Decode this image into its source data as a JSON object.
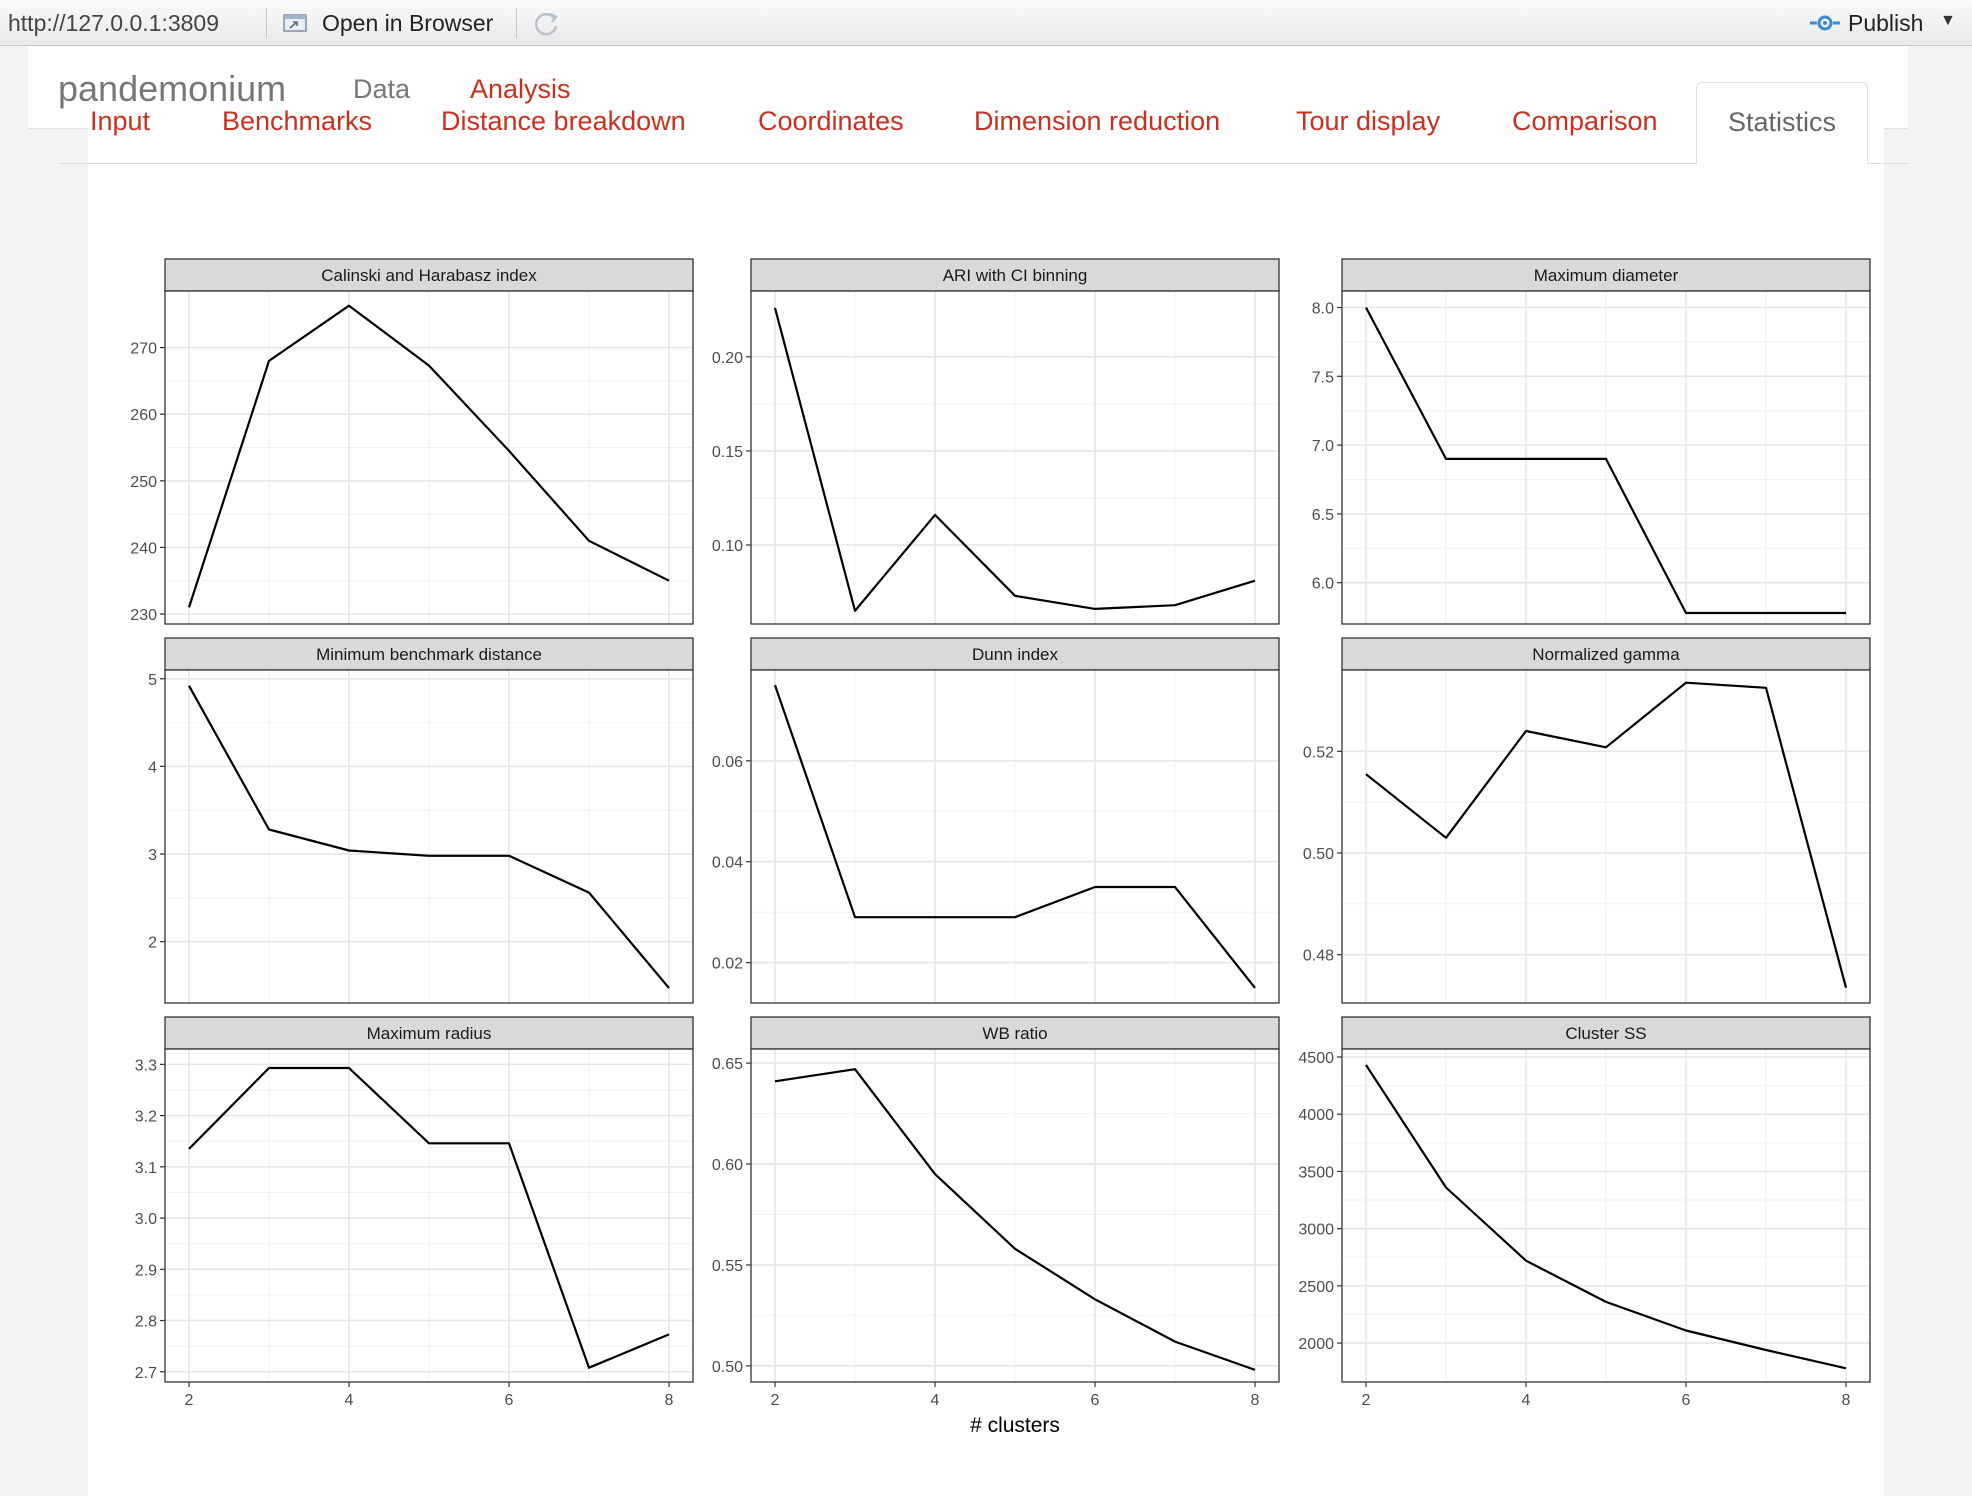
{
  "toolbar": {
    "url": "http://127.0.0.1:3809",
    "open_in_browser": "Open in Browser",
    "publish": "Publish",
    "icons": [
      "open-browser-icon",
      "refresh-icon",
      "publish-icon",
      "caret-down-icon"
    ]
  },
  "navbar": {
    "brand": "pandemonium",
    "items": [
      {
        "label": "Data"
      },
      {
        "label": "Analysis"
      }
    ]
  },
  "tabs": [
    "Input",
    "Benchmarks",
    "Distance breakdown",
    "Coordinates",
    "Dimension reduction",
    "Tour display",
    "Comparison",
    "Statistics"
  ],
  "active_tab": "Statistics",
  "colors": {
    "accent": "#c9301e",
    "strip_bg": "#d9d9d9",
    "line": "#000000",
    "grid": "#ebebeb"
  },
  "chart_data": {
    "type": "line",
    "xlabel": "# clusters",
    "x": [
      2,
      3,
      4,
      5,
      6,
      7,
      8
    ],
    "xticks": [
      "2",
      "4",
      "6",
      "8"
    ],
    "xlim": [
      1.7,
      8.3
    ],
    "panels": [
      {
        "title": "Calinski and Harabasz index",
        "ylim": [
          228.5,
          278.5
        ],
        "yticks": [
          "230",
          "240",
          "250",
          "260",
          "270"
        ],
        "tick_values": [
          230,
          240,
          250,
          260,
          270
        ],
        "values": [
          231,
          268,
          276.3,
          267.3,
          254.5,
          241,
          235
        ]
      },
      {
        "title": "ARI with CI binning",
        "ylim": [
          0.058,
          0.235
        ],
        "yticks": [
          "0.10",
          "0.15",
          "0.20"
        ],
        "tick_values": [
          0.1,
          0.15,
          0.2
        ],
        "values": [
          0.226,
          0.065,
          0.116,
          0.073,
          0.066,
          0.068,
          0.081
        ]
      },
      {
        "title": "Maximum diameter",
        "ylim": [
          5.7,
          8.12
        ],
        "yticks": [
          "6.0",
          "6.5",
          "7.0",
          "7.5",
          "8.0"
        ],
        "tick_values": [
          6.0,
          6.5,
          7.0,
          7.5,
          8.0
        ],
        "values": [
          8.0,
          6.9,
          6.9,
          6.9,
          5.78,
          5.78,
          5.78
        ]
      },
      {
        "title": "Minimum benchmark distance",
        "ylim": [
          1.3,
          5.1
        ],
        "yticks": [
          "2",
          "3",
          "4",
          "5"
        ],
        "tick_values": [
          2,
          3,
          4,
          5
        ],
        "values": [
          4.92,
          3.28,
          3.04,
          2.98,
          2.98,
          2.56,
          1.47
        ]
      },
      {
        "title": "Dunn index",
        "ylim": [
          0.012,
          0.078
        ],
        "yticks": [
          "0.02",
          "0.04",
          "0.06"
        ],
        "tick_values": [
          0.02,
          0.04,
          0.06
        ],
        "values": [
          0.075,
          0.029,
          0.029,
          0.029,
          0.035,
          0.035,
          0.015
        ]
      },
      {
        "title": "Normalized gamma",
        "ylim": [
          0.4705,
          0.536
        ],
        "yticks": [
          "0.48",
          "0.50",
          "0.52"
        ],
        "tick_values": [
          0.48,
          0.5,
          0.52
        ],
        "values": [
          0.5155,
          0.503,
          0.524,
          0.5208,
          0.5335,
          0.5325,
          0.4735
        ]
      },
      {
        "title": "Maximum radius",
        "ylim": [
          2.68,
          3.33
        ],
        "yticks": [
          "2.7",
          "2.8",
          "2.9",
          "3.0",
          "3.1",
          "3.2",
          "3.3"
        ],
        "tick_values": [
          2.7,
          2.8,
          2.9,
          3.0,
          3.1,
          3.2,
          3.3
        ],
        "values": [
          3.135,
          3.293,
          3.293,
          3.146,
          3.146,
          2.708,
          2.773
        ]
      },
      {
        "title": "WB ratio",
        "ylim": [
          0.492,
          0.657
        ],
        "yticks": [
          "0.50",
          "0.55",
          "0.60",
          "0.65"
        ],
        "tick_values": [
          0.5,
          0.55,
          0.6,
          0.65
        ],
        "values": [
          0.641,
          0.647,
          0.595,
          0.558,
          0.533,
          0.512,
          0.498
        ]
      },
      {
        "title": "Cluster SS",
        "ylim": [
          1660,
          4570
        ],
        "yticks": [
          "2000",
          "2500",
          "3000",
          "3500",
          "4000",
          "4500"
        ],
        "tick_values": [
          2000,
          2500,
          3000,
          3500,
          4000,
          4500
        ],
        "values": [
          4430,
          3360,
          2720,
          2360,
          2110,
          1940,
          1780
        ]
      }
    ]
  }
}
